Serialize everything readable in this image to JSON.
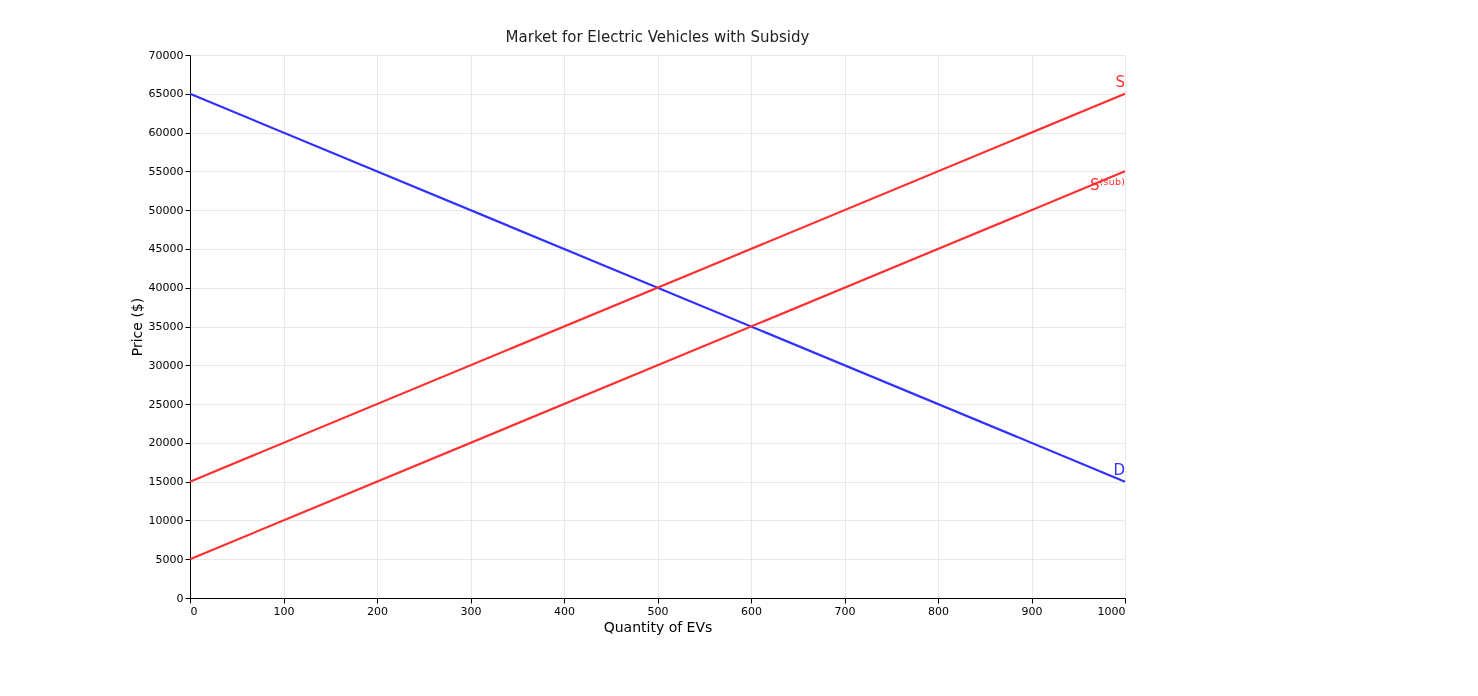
{
  "chart_data": {
    "type": "line",
    "title": "Market for Electric Vehicles with Subsidy",
    "xlabel": "Quantity of EVs",
    "ylabel": "Price ($)",
    "x": [
      0,
      1000
    ],
    "series": [
      {
        "name": "D",
        "color": "#3030ff",
        "values": [
          65000,
          15000
        ]
      },
      {
        "name": "S",
        "color": "#ff3030",
        "values": [
          15000,
          65000
        ]
      },
      {
        "name": "S⁽ˢᵘᵇ⁾",
        "color": "#ff3030",
        "values": [
          5000,
          55000
        ]
      }
    ],
    "xlim": [
      0,
      1000
    ],
    "xticks": [
      0,
      100,
      200,
      300,
      400,
      500,
      600,
      700,
      800,
      900,
      1000
    ],
    "ylim": [
      0,
      70000
    ],
    "yticks": [
      0,
      5000,
      10000,
      15000,
      20000,
      25000,
      30000,
      35000,
      40000,
      45000,
      50000,
      55000,
      60000,
      65000,
      70000
    ],
    "grid": true,
    "legend": false,
    "marker": "none",
    "line_style": "solid"
  }
}
